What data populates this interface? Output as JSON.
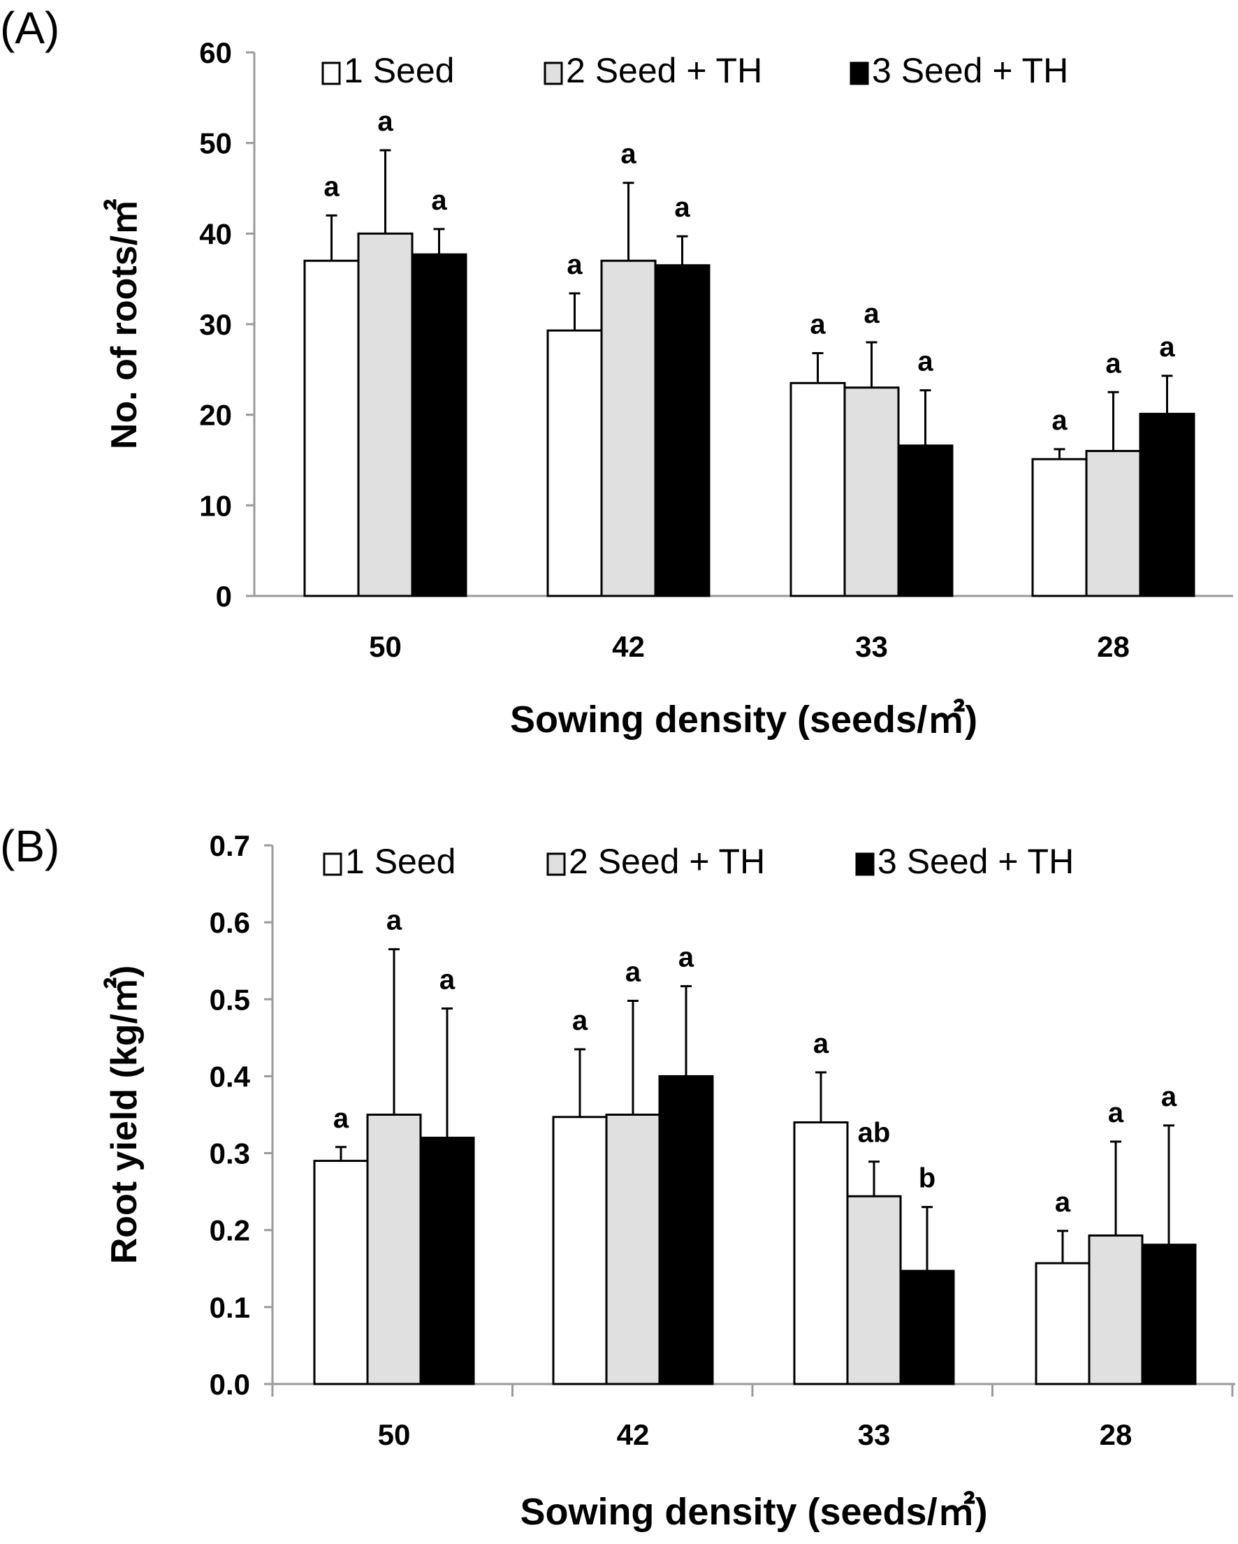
{
  "chart_data": [
    {
      "type": "bar",
      "panel_label": "(A)",
      "title": "",
      "xlabel": "Sowing density (seeds/㎡)",
      "ylabel": "No. of roots/㎡",
      "ylim": [
        0,
        60
      ],
      "yticks": [
        "0",
        "10",
        "20",
        "30",
        "40",
        "50",
        "60"
      ],
      "ytick_values": [
        0,
        10,
        20,
        30,
        40,
        50,
        60
      ],
      "categories": [
        "50",
        "42",
        "33",
        "28"
      ],
      "legend_position": "top",
      "series": [
        {
          "name": "1 Seed",
          "color": "#ffffff",
          "values": [
            37,
            29.3,
            23.5,
            15.1
          ],
          "errors": [
            5,
            4.1,
            3.3,
            1.1
          ],
          "letters": [
            "a",
            "a",
            "a",
            "a"
          ]
        },
        {
          "name": "2 Seed + TH",
          "color": "#e0e0e0",
          "values": [
            40,
            37,
            23,
            16
          ],
          "errors": [
            9.2,
            8.6,
            5,
            6.5
          ],
          "letters": [
            "a",
            "a",
            "a",
            "a"
          ]
        },
        {
          "name": "3 Seed + TH",
          "color": "#000000",
          "values": [
            37.7,
            36.5,
            16.6,
            20.1
          ],
          "errors": [
            2.8,
            3.2,
            6.1,
            4.2
          ],
          "letters": [
            "a",
            "a",
            "a",
            "a"
          ]
        }
      ]
    },
    {
      "type": "bar",
      "panel_label": "(B)",
      "title": "",
      "xlabel": "Sowing density  (seeds/㎡)",
      "ylabel": "Root yield (kg/㎡)",
      "ylim": [
        0,
        0.7
      ],
      "yticks": [
        "0.0",
        "0.1",
        "0.2",
        "0.3",
        "0.4",
        "0.5",
        "0.6",
        "0.7"
      ],
      "ytick_values": [
        0,
        0.1,
        0.2,
        0.3,
        0.4,
        0.5,
        0.6,
        0.7
      ],
      "categories": [
        "50",
        "42",
        "33",
        "28"
      ],
      "legend_position": "top",
      "series": [
        {
          "name": "1 Seed",
          "color": "#ffffff",
          "values": [
            0.29,
            0.347,
            0.34,
            0.157
          ],
          "errors": [
            0.018,
            0.088,
            0.065,
            0.042
          ],
          "letters": [
            "a",
            "a",
            "a",
            "a"
          ]
        },
        {
          "name": "2 Seed + TH",
          "color": "#e0e0e0",
          "values": [
            0.35,
            0.35,
            0.244,
            0.193
          ],
          "errors": [
            0.215,
            0.148,
            0.045,
            0.122
          ],
          "letters": [
            "a",
            "a",
            "ab",
            "a"
          ]
        },
        {
          "name": "3 Seed + TH",
          "color": "#000000",
          "values": [
            0.32,
            0.4,
            0.147,
            0.181
          ],
          "errors": [
            0.168,
            0.117,
            0.083,
            0.155
          ],
          "letters": [
            "a",
            "a",
            "b",
            "a"
          ]
        }
      ]
    }
  ]
}
